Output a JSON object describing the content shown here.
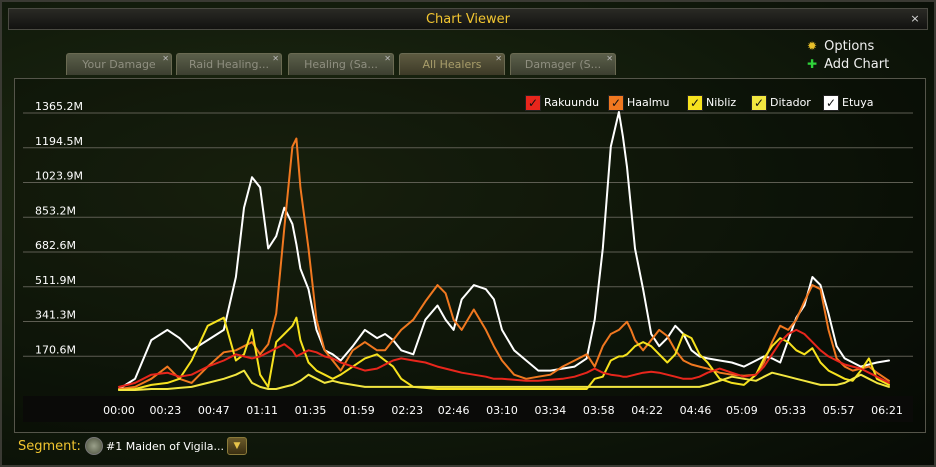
{
  "window": {
    "title": "Chart Viewer",
    "close_label": "×"
  },
  "tabs": [
    {
      "label": "Your Damage",
      "active": false
    },
    {
      "label": "Raid Healing...",
      "active": false
    },
    {
      "label": "Healing (Sa...",
      "active": false
    },
    {
      "label": "All Healers",
      "active": true
    },
    {
      "label": "Damager (S...",
      "active": false
    }
  ],
  "options": {
    "options_label": "Options",
    "add_chart_label": "Add Chart",
    "options_icon": "gear-icon",
    "add_icon": "plus-icon"
  },
  "segment": {
    "label": "Segment:",
    "name": "#1 Maiden of Vigila..."
  },
  "chart_data": {
    "type": "line",
    "title": "",
    "xlabel": "",
    "ylabel": "",
    "ylim": [
      0,
      1365.2
    ],
    "y_ticks": [
      "170.6M",
      "341.3M",
      "511.9M",
      "682.6M",
      "853.2M",
      "1023.9M",
      "1194.5M",
      "1365.2M"
    ],
    "y_tick_values": [
      170.6,
      341.3,
      511.9,
      682.6,
      853.2,
      1023.9,
      1194.5,
      1365.2
    ],
    "x_ticks": [
      "00:00",
      "00:23",
      "00:47",
      "01:11",
      "01:35",
      "01:59",
      "02:23",
      "02:46",
      "03:10",
      "03:34",
      "03:58",
      "04:22",
      "04:46",
      "05:09",
      "05:33",
      "05:57",
      "06:21"
    ],
    "x_tick_seconds": [
      0,
      23,
      47,
      71,
      95,
      119,
      143,
      166,
      190,
      214,
      238,
      262,
      286,
      309,
      333,
      357,
      381
    ],
    "x_unit": "seconds",
    "grid": true,
    "legend_placement": "top-right",
    "x": [
      0,
      8,
      16,
      24,
      30,
      36,
      44,
      52,
      58,
      62,
      66,
      70,
      74,
      78,
      82,
      86,
      88,
      90,
      94,
      98,
      102,
      106,
      110,
      116,
      122,
      128,
      132,
      136,
      140,
      146,
      152,
      158,
      162,
      166,
      170,
      176,
      182,
      186,
      190,
      196,
      202,
      208,
      214,
      220,
      226,
      232,
      236,
      240,
      244,
      248,
      250,
      252,
      254,
      256,
      260,
      264,
      268,
      272,
      276,
      280,
      284,
      288,
      292,
      298,
      304,
      310,
      316,
      320,
      324,
      328,
      332,
      336,
      340,
      344,
      348,
      352,
      356,
      360,
      364,
      368,
      372,
      376,
      382
    ],
    "series": [
      {
        "name": "Rakuundu",
        "color": "#e8261c",
        "values": [
          20,
          40,
          80,
          90,
          70,
          80,
          120,
          150,
          180,
          170,
          160,
          170,
          190,
          210,
          230,
          200,
          170,
          180,
          200,
          190,
          170,
          160,
          140,
          120,
          100,
          110,
          130,
          150,
          160,
          150,
          140,
          120,
          110,
          100,
          90,
          80,
          70,
          60,
          60,
          55,
          50,
          50,
          55,
          60,
          70,
          90,
          110,
          90,
          80,
          75,
          70,
          70,
          75,
          80,
          90,
          95,
          90,
          80,
          70,
          60,
          60,
          70,
          90,
          110,
          90,
          70,
          80,
          120,
          180,
          240,
          280,
          300,
          280,
          240,
          200,
          170,
          150,
          130,
          120,
          110,
          90,
          70,
          40
        ]
      },
      {
        "name": "Haalmu",
        "color": "#f07820",
        "values": [
          10,
          20,
          60,
          120,
          60,
          40,
          120,
          190,
          200,
          220,
          240,
          180,
          230,
          380,
          800,
          1200,
          1240,
          1000,
          700,
          350,
          200,
          150,
          100,
          200,
          240,
          200,
          200,
          250,
          300,
          350,
          440,
          520,
          480,
          350,
          300,
          400,
          300,
          220,
          150,
          80,
          60,
          70,
          80,
          120,
          150,
          180,
          120,
          220,
          280,
          300,
          320,
          340,
          300,
          250,
          200,
          250,
          300,
          270,
          200,
          150,
          130,
          120,
          110,
          90,
          80,
          75,
          80,
          140,
          240,
          320,
          300,
          350,
          440,
          520,
          500,
          300,
          160,
          120,
          100,
          110,
          120,
          90,
          50
        ]
      },
      {
        "name": "Nibliz",
        "color": "#f6e21e",
        "values": [
          5,
          10,
          30,
          40,
          60,
          150,
          320,
          360,
          150,
          180,
          300,
          80,
          20,
          240,
          280,
          320,
          360,
          250,
          140,
          100,
          80,
          60,
          80,
          120,
          160,
          180,
          150,
          120,
          60,
          20,
          15,
          10,
          10,
          10,
          10,
          10,
          10,
          10,
          10,
          10,
          10,
          10,
          10,
          10,
          10,
          10,
          60,
          70,
          150,
          170,
          170,
          180,
          200,
          220,
          240,
          220,
          180,
          140,
          180,
          280,
          260,
          180,
          140,
          60,
          40,
          30,
          80,
          160,
          220,
          260,
          240,
          200,
          180,
          210,
          140,
          100,
          80,
          60,
          50,
          100,
          160,
          60,
          30
        ]
      },
      {
        "name": "Ditador",
        "color": "#f2e640",
        "values": [
          5,
          5,
          10,
          10,
          15,
          20,
          40,
          60,
          80,
          100,
          40,
          20,
          10,
          10,
          20,
          30,
          40,
          50,
          80,
          60,
          40,
          50,
          40,
          30,
          20,
          20,
          20,
          20,
          20,
          20,
          20,
          20,
          20,
          20,
          20,
          20,
          20,
          20,
          20,
          20,
          20,
          20,
          20,
          20,
          20,
          20,
          20,
          20,
          20,
          20,
          20,
          20,
          20,
          20,
          20,
          20,
          20,
          20,
          20,
          20,
          20,
          20,
          30,
          50,
          70,
          60,
          50,
          70,
          90,
          80,
          70,
          60,
          50,
          40,
          30,
          30,
          30,
          40,
          60,
          80,
          60,
          40,
          20
        ]
      },
      {
        "name": "Etuya",
        "color": "#ffffff",
        "values": [
          10,
          60,
          250,
          300,
          260,
          200,
          250,
          300,
          560,
          900,
          1050,
          1000,
          700,
          760,
          900,
          820,
          720,
          600,
          500,
          300,
          200,
          180,
          150,
          220,
          300,
          260,
          280,
          250,
          200,
          180,
          350,
          420,
          350,
          300,
          450,
          520,
          500,
          450,
          300,
          200,
          150,
          100,
          100,
          110,
          120,
          160,
          350,
          700,
          1200,
          1370,
          1250,
          1100,
          900,
          700,
          500,
          280,
          220,
          260,
          320,
          280,
          200,
          170,
          160,
          150,
          140,
          120,
          150,
          170,
          160,
          140,
          250,
          360,
          420,
          560,
          520,
          380,
          220,
          160,
          140,
          120,
          130,
          140,
          150
        ]
      }
    ]
  }
}
